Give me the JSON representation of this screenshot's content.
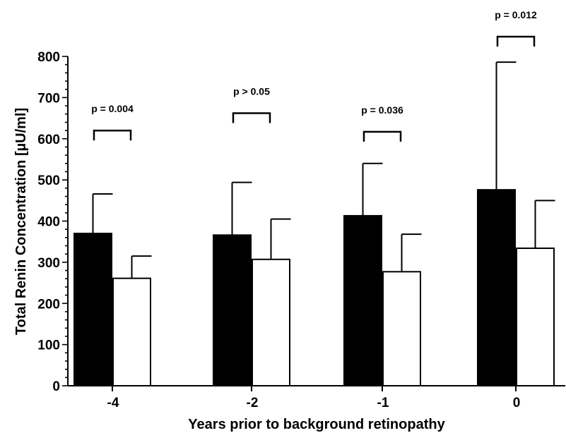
{
  "chart_data": {
    "type": "bar",
    "title": "",
    "xlabel": "Years prior to background retinopathy",
    "ylabel": "Total Renin Concentration [µU/ml]",
    "ylim": [
      0,
      800
    ],
    "yticks": [
      "0",
      "100",
      "200",
      "300",
      "400",
      "500",
      "600",
      "700",
      "800"
    ],
    "categories": [
      "-4",
      "-2",
      "-1",
      "0"
    ],
    "legend": "none",
    "grid": false,
    "series": [
      {
        "color": "#000000",
        "values": [
          370,
          366,
          413,
          476
        ],
        "error_upper": [
          466,
          494,
          540,
          786
        ]
      },
      {
        "color": "#ffffff",
        "values": [
          261,
          307,
          277,
          334
        ],
        "error_upper": [
          315,
          405,
          368,
          450
        ]
      }
    ],
    "annotations": [
      {
        "category": "-4",
        "text": "p = 0.004",
        "bracket_y": 620
      },
      {
        "category": "-2",
        "text": "p > 0.05",
        "bracket_y": 662
      },
      {
        "category": "-1",
        "text": "p = 0.036",
        "bracket_y": 617
      },
      {
        "category": "0",
        "text": "p = 0.012",
        "bracket_y": 848
      }
    ]
  }
}
